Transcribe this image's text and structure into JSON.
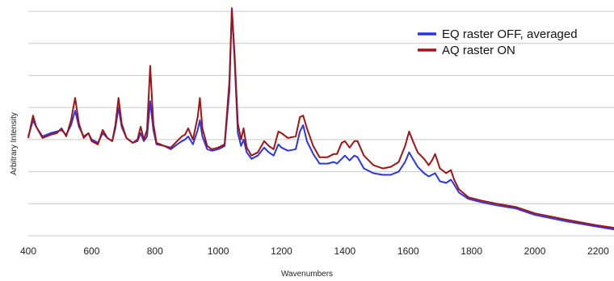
{
  "chart_data": {
    "type": "line",
    "title": "",
    "xlabel": "Wavenumbers",
    "ylabel": "Arbitrary Intensity",
    "xlim": [
      400,
      2250
    ],
    "ylim": [
      0,
      7.1
    ],
    "xticks": [
      400,
      600,
      800,
      1000,
      1200,
      1400,
      1600,
      1800,
      2000,
      2200
    ],
    "y_gridlines": [
      1,
      2,
      3,
      4,
      5,
      6,
      7
    ],
    "grid": "horizontal",
    "legend_position": "top-right",
    "colors": {
      "series_0": "#2a35e8",
      "series_1": "#a31313",
      "grid": "#c8c8c8"
    },
    "series": [
      {
        "name": "EQ raster OFF, averaged",
        "points": [
          [
            400,
            3.1
          ],
          [
            415,
            3.6
          ],
          [
            425,
            3.4
          ],
          [
            445,
            3.1
          ],
          [
            470,
            3.2
          ],
          [
            490,
            3.25
          ],
          [
            505,
            3.3
          ],
          [
            520,
            3.15
          ],
          [
            535,
            3.45
          ],
          [
            548,
            3.9
          ],
          [
            560,
            3.4
          ],
          [
            575,
            3.1
          ],
          [
            590,
            3.2
          ],
          [
            600,
            3.0
          ],
          [
            620,
            2.9
          ],
          [
            635,
            3.2
          ],
          [
            650,
            3.05
          ],
          [
            665,
            2.95
          ],
          [
            675,
            3.35
          ],
          [
            685,
            4.0
          ],
          [
            695,
            3.4
          ],
          [
            710,
            3.05
          ],
          [
            730,
            2.9
          ],
          [
            745,
            2.95
          ],
          [
            755,
            3.2
          ],
          [
            765,
            2.95
          ],
          [
            775,
            3.1
          ],
          [
            785,
            4.2
          ],
          [
            795,
            3.3
          ],
          [
            805,
            2.85
          ],
          [
            830,
            2.8
          ],
          [
            850,
            2.7
          ],
          [
            870,
            2.85
          ],
          [
            885,
            2.95
          ],
          [
            895,
            3.0
          ],
          [
            905,
            3.1
          ],
          [
            920,
            2.85
          ],
          [
            935,
            3.3
          ],
          [
            942,
            3.6
          ],
          [
            950,
            3.1
          ],
          [
            965,
            2.7
          ],
          [
            980,
            2.65
          ],
          [
            1000,
            2.7
          ],
          [
            1020,
            2.8
          ],
          [
            1035,
            4.5
          ],
          [
            1043,
            7.1
          ],
          [
            1052,
            5.4
          ],
          [
            1062,
            3.2
          ],
          [
            1072,
            2.8
          ],
          [
            1080,
            3.0
          ],
          [
            1090,
            2.6
          ],
          [
            1105,
            2.4
          ],
          [
            1125,
            2.5
          ],
          [
            1145,
            2.75
          ],
          [
            1160,
            2.6
          ],
          [
            1175,
            2.5
          ],
          [
            1190,
            2.85
          ],
          [
            1200,
            2.75
          ],
          [
            1220,
            2.65
          ],
          [
            1245,
            2.7
          ],
          [
            1258,
            3.25
          ],
          [
            1268,
            3.45
          ],
          [
            1280,
            2.95
          ],
          [
            1300,
            2.55
          ],
          [
            1320,
            2.25
          ],
          [
            1345,
            2.25
          ],
          [
            1365,
            2.3
          ],
          [
            1375,
            2.25
          ],
          [
            1390,
            2.4
          ],
          [
            1400,
            2.5
          ],
          [
            1415,
            2.35
          ],
          [
            1430,
            2.5
          ],
          [
            1440,
            2.45
          ],
          [
            1460,
            2.1
          ],
          [
            1490,
            1.95
          ],
          [
            1520,
            1.9
          ],
          [
            1545,
            1.9
          ],
          [
            1570,
            2.0
          ],
          [
            1590,
            2.3
          ],
          [
            1603,
            2.6
          ],
          [
            1615,
            2.4
          ],
          [
            1630,
            2.15
          ],
          [
            1650,
            1.95
          ],
          [
            1665,
            1.85
          ],
          [
            1675,
            1.9
          ],
          [
            1685,
            1.95
          ],
          [
            1700,
            1.7
          ],
          [
            1720,
            1.65
          ],
          [
            1735,
            1.75
          ],
          [
            1745,
            1.6
          ],
          [
            1760,
            1.35
          ],
          [
            1790,
            1.15
          ],
          [
            1830,
            1.05
          ],
          [
            1880,
            0.95
          ],
          [
            1940,
            0.85
          ],
          [
            2000,
            0.65
          ],
          [
            2100,
            0.45
          ],
          [
            2200,
            0.28
          ],
          [
            2250,
            0.2
          ]
        ]
      },
      {
        "name": "AQ raster ON",
        "points": [
          [
            400,
            3.05
          ],
          [
            415,
            3.75
          ],
          [
            425,
            3.4
          ],
          [
            445,
            3.05
          ],
          [
            470,
            3.15
          ],
          [
            490,
            3.2
          ],
          [
            505,
            3.35
          ],
          [
            520,
            3.1
          ],
          [
            535,
            3.6
          ],
          [
            548,
            4.3
          ],
          [
            560,
            3.5
          ],
          [
            575,
            3.05
          ],
          [
            590,
            3.2
          ],
          [
            600,
            2.95
          ],
          [
            620,
            2.85
          ],
          [
            635,
            3.3
          ],
          [
            650,
            3.05
          ],
          [
            665,
            2.95
          ],
          [
            675,
            3.45
          ],
          [
            685,
            4.3
          ],
          [
            695,
            3.5
          ],
          [
            710,
            3.05
          ],
          [
            730,
            2.9
          ],
          [
            745,
            3.0
          ],
          [
            755,
            3.4
          ],
          [
            765,
            3.0
          ],
          [
            775,
            3.3
          ],
          [
            785,
            5.3
          ],
          [
            795,
            3.5
          ],
          [
            805,
            2.9
          ],
          [
            830,
            2.8
          ],
          [
            850,
            2.75
          ],
          [
            870,
            2.95
          ],
          [
            885,
            3.1
          ],
          [
            895,
            3.15
          ],
          [
            905,
            3.35
          ],
          [
            920,
            3.0
          ],
          [
            935,
            3.7
          ],
          [
            942,
            4.3
          ],
          [
            950,
            3.35
          ],
          [
            965,
            2.8
          ],
          [
            980,
            2.7
          ],
          [
            1000,
            2.75
          ],
          [
            1020,
            2.85
          ],
          [
            1035,
            4.8
          ],
          [
            1043,
            7.05
          ],
          [
            1052,
            5.6
          ],
          [
            1062,
            3.5
          ],
          [
            1072,
            3.0
          ],
          [
            1080,
            3.35
          ],
          [
            1090,
            2.75
          ],
          [
            1105,
            2.5
          ],
          [
            1125,
            2.6
          ],
          [
            1145,
            2.95
          ],
          [
            1160,
            2.8
          ],
          [
            1175,
            2.7
          ],
          [
            1190,
            3.25
          ],
          [
            1200,
            3.2
          ],
          [
            1220,
            3.05
          ],
          [
            1245,
            3.1
          ],
          [
            1258,
            3.7
          ],
          [
            1268,
            3.75
          ],
          [
            1280,
            3.35
          ],
          [
            1300,
            2.8
          ],
          [
            1320,
            2.45
          ],
          [
            1345,
            2.45
          ],
          [
            1365,
            2.55
          ],
          [
            1375,
            2.55
          ],
          [
            1390,
            2.9
          ],
          [
            1400,
            2.95
          ],
          [
            1415,
            2.75
          ],
          [
            1430,
            2.95
          ],
          [
            1440,
            2.95
          ],
          [
            1460,
            2.5
          ],
          [
            1490,
            2.2
          ],
          [
            1520,
            2.1
          ],
          [
            1545,
            2.15
          ],
          [
            1570,
            2.3
          ],
          [
            1590,
            2.8
          ],
          [
            1603,
            3.25
          ],
          [
            1615,
            2.95
          ],
          [
            1630,
            2.6
          ],
          [
            1650,
            2.4
          ],
          [
            1665,
            2.2
          ],
          [
            1675,
            2.35
          ],
          [
            1685,
            2.55
          ],
          [
            1700,
            2.1
          ],
          [
            1720,
            1.95
          ],
          [
            1735,
            2.05
          ],
          [
            1745,
            1.75
          ],
          [
            1760,
            1.45
          ],
          [
            1790,
            1.2
          ],
          [
            1830,
            1.1
          ],
          [
            1880,
            1.0
          ],
          [
            1940,
            0.9
          ],
          [
            2000,
            0.7
          ],
          [
            2100,
            0.5
          ],
          [
            2200,
            0.32
          ],
          [
            2250,
            0.25
          ]
        ]
      }
    ]
  }
}
